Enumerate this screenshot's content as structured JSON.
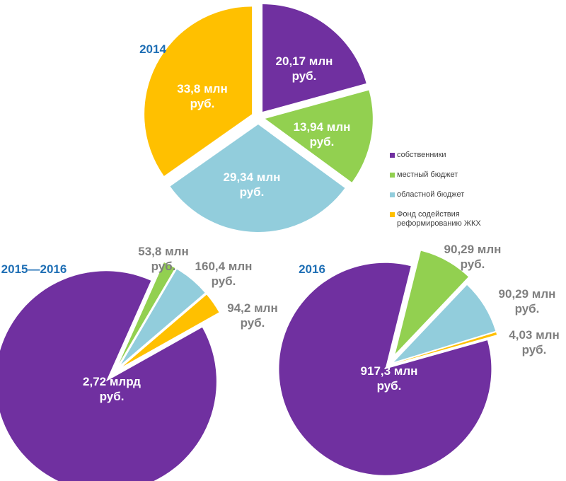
{
  "chart_data": [
    {
      "type": "pie",
      "title": "2014",
      "unit": "млн руб.",
      "slices": [
        {
          "series": "собственники",
          "value": 20.17,
          "label": [
            "20,17 млн",
            "руб."
          ]
        },
        {
          "series": "местный бюджет",
          "value": 13.94,
          "label": [
            "13,94 млн",
            "руб."
          ]
        },
        {
          "series": "областной бюджет",
          "value": 29.34,
          "label": [
            "29,34 млн",
            "руб."
          ]
        },
        {
          "series": "Фонд содействия реформированию ЖКХ",
          "value": 33.8,
          "label": [
            "33,8 млн",
            "руб."
          ]
        }
      ]
    },
    {
      "type": "pie",
      "title": "2015—2016",
      "unit": "млн руб.",
      "slices": [
        {
          "series": "местный бюджет",
          "value": 53.8,
          "label": [
            "53,8 млн",
            "руб."
          ]
        },
        {
          "series": "областной бюджет",
          "value": 160.4,
          "label": [
            "160,4 млн",
            "руб."
          ]
        },
        {
          "series": "Фонд содействия реформированию ЖКХ",
          "value": 94.2,
          "label": [
            "94,2 млн",
            "руб."
          ]
        },
        {
          "series": "собственники",
          "value": 2720,
          "label": [
            "2,72 млрд",
            "руб."
          ]
        }
      ]
    },
    {
      "type": "pie",
      "title": "2016",
      "unit": "млн руб.",
      "slices": [
        {
          "series": "местный бюджет",
          "value": 90.29,
          "label": [
            "90,29 млн",
            "руб."
          ]
        },
        {
          "series": "областной бюджет",
          "value": 90.29,
          "label": [
            "90,29 млн",
            "руб."
          ]
        },
        {
          "series": "Фонд содействия реформированию ЖКХ",
          "value": 4.03,
          "label": [
            "4,03 млн",
            "руб."
          ]
        },
        {
          "series": "собственники",
          "value": 917.3,
          "label": [
            "917,3 млн",
            "руб."
          ]
        }
      ]
    }
  ],
  "legend": {
    "placement": "right",
    "items": [
      {
        "label": "собственники",
        "color": "#7030A0"
      },
      {
        "label": "местный бюджет",
        "color": "#92D050"
      },
      {
        "label": "областной бюджет",
        "color": "#92CDDC"
      },
      {
        "label": "Фонд содействия реформированию ЖКХ",
        "color": "#FFC000"
      }
    ]
  }
}
